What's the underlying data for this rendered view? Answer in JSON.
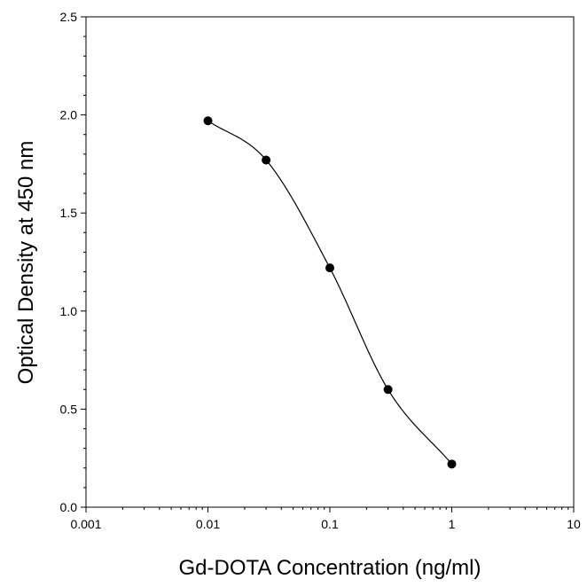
{
  "chart_data": {
    "type": "scatter",
    "title": "",
    "xlabel": "Gd-DOTA Concentration (ng/ml)",
    "ylabel": "Optical Density at 450 nm",
    "x_scale": "log",
    "xlim": [
      0.001,
      10
    ],
    "ylim": [
      0,
      2.5
    ],
    "x_ticks": [
      0.001,
      0.01,
      0.1,
      1,
      10
    ],
    "x_tick_labels": [
      "0.001",
      "0.01",
      "0.1",
      "1",
      "10"
    ],
    "y_ticks": [
      0,
      0.5,
      1,
      1.5,
      2,
      2.5
    ],
    "y_tick_labels": [
      "0.0",
      "0.5",
      "1.0",
      "1.5",
      "2.0",
      "2.5"
    ],
    "grid": false,
    "legend": "none",
    "series": [
      {
        "x": [
          0.01,
          0.03,
          0.1,
          0.3,
          1
        ],
        "y": [
          1.97,
          1.77,
          1.22,
          0.6,
          0.22
        ],
        "marker": "filled-circle",
        "fit_curve": "smooth",
        "color": "#000000"
      }
    ]
  }
}
